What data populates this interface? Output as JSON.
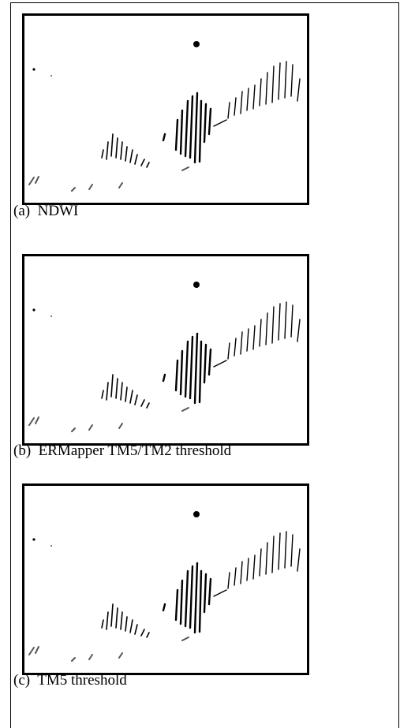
{
  "figures": [
    {
      "label": "(a)",
      "caption": "NDWI"
    },
    {
      "label": "(b)",
      "caption": "ERMapper TM5/TM2 threshold"
    },
    {
      "label": "(c)",
      "caption": "TM5 threshold"
    }
  ]
}
